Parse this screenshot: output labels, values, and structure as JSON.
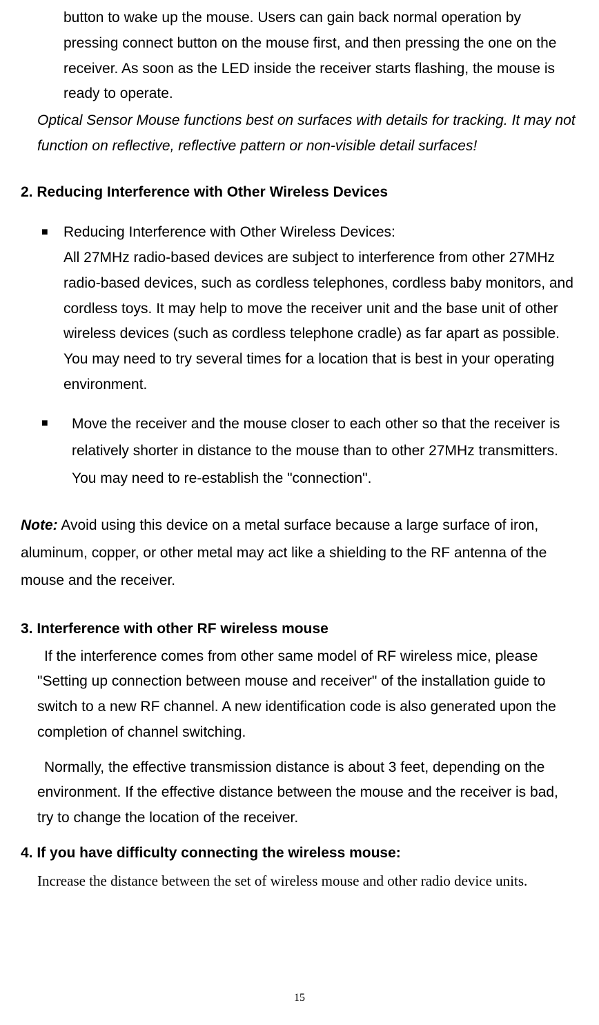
{
  "continuation": "button to wake up the mouse. Users can gain back normal operation by pressing connect button on the mouse first, and then pressing the one on the receiver. As soon as the LED inside the receiver starts flashing, the mouse is ready to operate.",
  "italicNote": "Optical Sensor Mouse functions best on surfaces with details for tracking. It may not function on reflective, reflective pattern or non-visible detail surfaces!",
  "section2": {
    "heading": "2. Reducing Interference with Other Wireless Devices",
    "bullet1Title": "Reducing Interference with Other Wireless Devices:",
    "bullet1Body": "All 27MHz radio-based devices are subject to interference from other 27MHz radio-based devices, such as cordless telephones, cordless baby monitors, and cordless toys. It may help to move the receiver unit and the base unit of other wireless devices (such as cordless telephone cradle) as far apart as possible. You may need to try several times for a location that is best in your operating environment.",
    "bullet2": "Move the receiver and the mouse closer to each other so that the receiver is relatively shorter in distance to the mouse than to other 27MHz transmitters. You may need to re-establish the \"connection\"."
  },
  "note": {
    "label": "Note:",
    "body": " Avoid using this device on a metal surface because a large surface of iron, aluminum, copper, or other metal may act like a shielding to the RF antenna of the mouse and the receiver."
  },
  "section3": {
    "heading": "3. Interference with other RF wireless mouse",
    "para1": "If the interference comes from other same model of RF wireless mice, please \"Setting up connection between mouse and receiver\" of the installation guide to switch to a new RF channel. A new identification code is also generated upon the completion of channel switching.",
    "para2": "Normally, the effective transmission distance is about 3 feet, depending on the environment. If the effective distance between the mouse and the receiver is bad, try to change the location of the receiver."
  },
  "section4": {
    "heading": "4. If you have difficulty connecting the wireless mouse:",
    "body": "Increase the distance between the set of wireless mouse and other radio device units."
  },
  "pageNumber": "15",
  "styling": {
    "bodyFontSize": 21,
    "lineHeight": 1.75,
    "textColor": "#000000",
    "backgroundColor": "#ffffff",
    "pageWidth": 868,
    "pageHeight": 1486
  }
}
